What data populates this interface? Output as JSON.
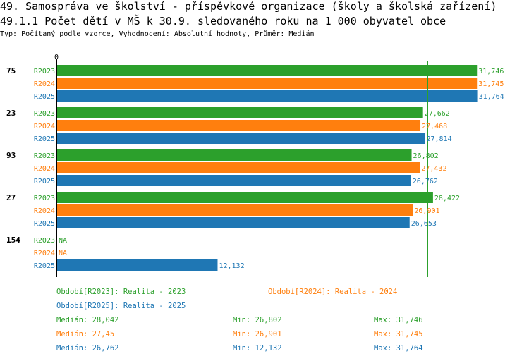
{
  "header": {
    "title": "49. Samospráva ve školství - příspěvkové organizace (školy a školská zařízení)",
    "subtitle": "49.1.1 Počet dětí v MŠ k 30.9. sledovaného roku na 1 000 obyvatel obce",
    "type_line": "Typ: Počítaný podle vzorce, Vyhodnocení: Absolutní hodnoty, Průměr: Medián"
  },
  "colors": {
    "R2023": "#2ca02c",
    "R2024": "#ff7f0e",
    "R2025": "#1f77b4"
  },
  "chart_data": {
    "type": "bar",
    "orientation": "horizontal",
    "title": "49.1.1 Počet dětí v MŠ k 30.9. sledovaného roku na 1 000 obyvatel obce",
    "x_tick_labels": [
      "0"
    ],
    "xlim": [
      0,
      32
    ],
    "categories": [
      "75",
      "23",
      "93",
      "27",
      "154"
    ],
    "series": [
      {
        "name": "R2023",
        "values": [
          31.746,
          27.662,
          26.802,
          28.422,
          null
        ],
        "labels": [
          "31,746",
          "27,662",
          "26,802",
          "28,422",
          "NA"
        ]
      },
      {
        "name": "R2024",
        "values": [
          31.745,
          27.468,
          27.432,
          26.901,
          null
        ],
        "labels": [
          "31,745",
          "27,468",
          "27,432",
          "26,901",
          "NA"
        ]
      },
      {
        "name": "R2025",
        "values": [
          31.764,
          27.814,
          26.762,
          26.653,
          12.132
        ],
        "labels": [
          "31,764",
          "27,814",
          "26,762",
          "26,653",
          "12,132"
        ]
      }
    ],
    "reference_lines": [
      {
        "series": "R2023",
        "stat": "median",
        "value": 28.042
      },
      {
        "series": "R2024",
        "stat": "median",
        "value": 27.45
      },
      {
        "series": "R2025",
        "stat": "median",
        "value": 26.762
      }
    ]
  },
  "legend": {
    "periods": [
      {
        "series": "R2023",
        "label": "Období[R2023]: Realita - 2023"
      },
      {
        "series": "R2024",
        "label": "Období[R2024]: Realita - 2024"
      },
      {
        "series": "R2025",
        "label": "Období[R2025]: Realita - 2025"
      }
    ],
    "stats": [
      {
        "series": "R2023",
        "median": "Medián: 28,042",
        "min": "Min: 26,802",
        "max": "Max: 31,746"
      },
      {
        "series": "R2024",
        "median": "Medián: 27,45",
        "min": "Min: 26,901",
        "max": "Max: 31,745"
      },
      {
        "series": "R2025",
        "median": "Medián: 26,762",
        "min": "Min: 12,132",
        "max": "Max: 31,764"
      }
    ]
  }
}
